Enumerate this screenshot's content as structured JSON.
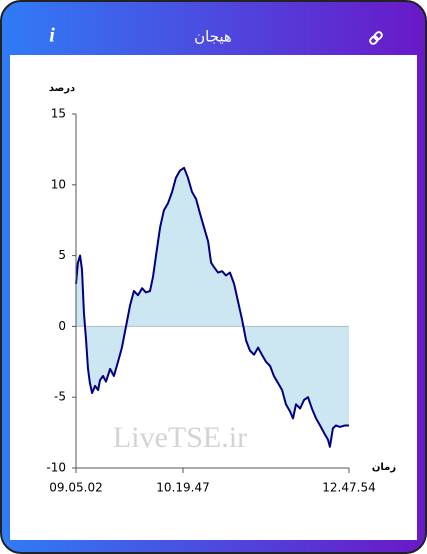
{
  "header": {
    "icon": "i",
    "title": "هیجان"
  },
  "watermark": "LiveTSE.ir",
  "chart_data": {
    "type": "area",
    "y_label": "درصد",
    "x_label": "زمان",
    "x": [
      0,
      0.7,
      1.5,
      2.2,
      2.9,
      3.7,
      4.4,
      5.1,
      5.9,
      7.0,
      8.1,
      8.8,
      9.9,
      11.0,
      12.5,
      13.9,
      15.4,
      16.8,
      18.3,
      19.8,
      21.2,
      22.7,
      24.2,
      25.6,
      27.1,
      28.2,
      29.3,
      30.8,
      32.2,
      33.7,
      35.2,
      36.6,
      38.1,
      39.6,
      41.0,
      42.5,
      44.0,
      45.4,
      46.9,
      48.4,
      49.5,
      50.5,
      52.0,
      53.5,
      54.9,
      56.4,
      57.9,
      59.3,
      60.8,
      62.3,
      63.7,
      65.2,
      66.7,
      68.1,
      69.6,
      71.1,
      72.5,
      74.0,
      75.5,
      76.9,
      78.4,
      79.5,
      80.6,
      82.1,
      83.5,
      85.0,
      86.4,
      87.9,
      89.4,
      90.8,
      92.3,
      93.0,
      94.1,
      95.2,
      96.7,
      98.5,
      100
    ],
    "values": [
      3,
      4.5,
      5,
      4,
      1,
      -1,
      -3,
      -4,
      -4.7,
      -4.2,
      -4.5,
      -3.8,
      -3.5,
      -3.9,
      -3,
      -3.5,
      -2.5,
      -1.5,
      0,
      1.5,
      2.5,
      2.2,
      2.7,
      2.4,
      2.5,
      3.5,
      5,
      7,
      8.2,
      8.7,
      9.5,
      10.5,
      11,
      11.2,
      10.5,
      9.5,
      9,
      8,
      7,
      6,
      4.5,
      4.2,
      3.8,
      3.9,
      3.6,
      3.8,
      3,
      1.8,
      0.5,
      -1,
      -1.7,
      -2,
      -1.5,
      -2,
      -2.5,
      -2.8,
      -3.5,
      -4,
      -4.5,
      -5.5,
      -6,
      -6.5,
      -5.5,
      -5.8,
      -5.2,
      -5,
      -5.8,
      -6.5,
      -7,
      -7.5,
      -8,
      -8.5,
      -7.2,
      -7,
      -7.1,
      -7,
      -7
    ],
    "color": "#000080",
    "fill": "#cce7f2",
    "xlim": [
      0,
      100
    ],
    "xticks": [
      {
        "value": 0,
        "label": "09.05.02"
      },
      {
        "value": 39.2,
        "label": "10.19.47"
      },
      {
        "value": 100,
        "label": "12.47.54"
      }
    ],
    "ylim": [
      -10,
      15
    ],
    "yticks": [
      -10,
      -5,
      0,
      5,
      10,
      15
    ]
  }
}
